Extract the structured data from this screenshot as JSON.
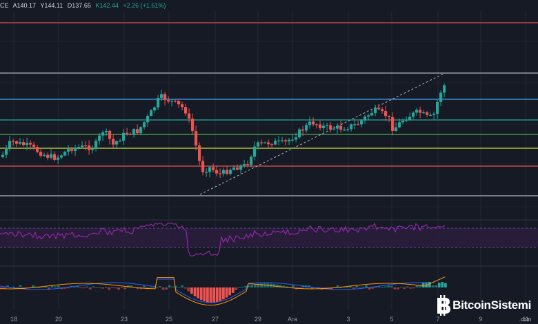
{
  "header": {
    "symbol_fragment": "CE",
    "open": "A140.17",
    "high": "Y144.11",
    "low": "D137.65",
    "close": "K142.44",
    "change": "+2.26 (+1.61%)"
  },
  "x_axis_labels": [
    "18",
    "20",
    "23",
    "25",
    "27",
    "29",
    "Ara",
    "3",
    "5",
    "7",
    "9",
    "11"
  ],
  "price_levels": [
    {
      "color": "#e0524f",
      "role": "top-red"
    },
    {
      "color": "#b2b5be",
      "role": "upper-white"
    },
    {
      "color": "#42a5f5",
      "role": "blue"
    },
    {
      "color": "#26a69a",
      "role": "green-1"
    },
    {
      "color": "#4caf50",
      "role": "green-2"
    },
    {
      "color": "#cddc39",
      "role": "yellow"
    },
    {
      "color": "#e0524f",
      "role": "lower-red"
    },
    {
      "color": "#b2b5be",
      "role": "lower-white"
    }
  ],
  "colors": {
    "background": "#161a25",
    "bull": "#26a69a",
    "bear": "#ef5350",
    "rsi_line": "#9c27b0",
    "rsi_band": "#2a1f3d",
    "macd_line": "#2962ff",
    "signal_line": "#ff9800"
  },
  "brand": {
    "name": "BitcoinSistemi",
    "domain": ".com",
    "icon": "bitcoin-logo-icon"
  }
}
